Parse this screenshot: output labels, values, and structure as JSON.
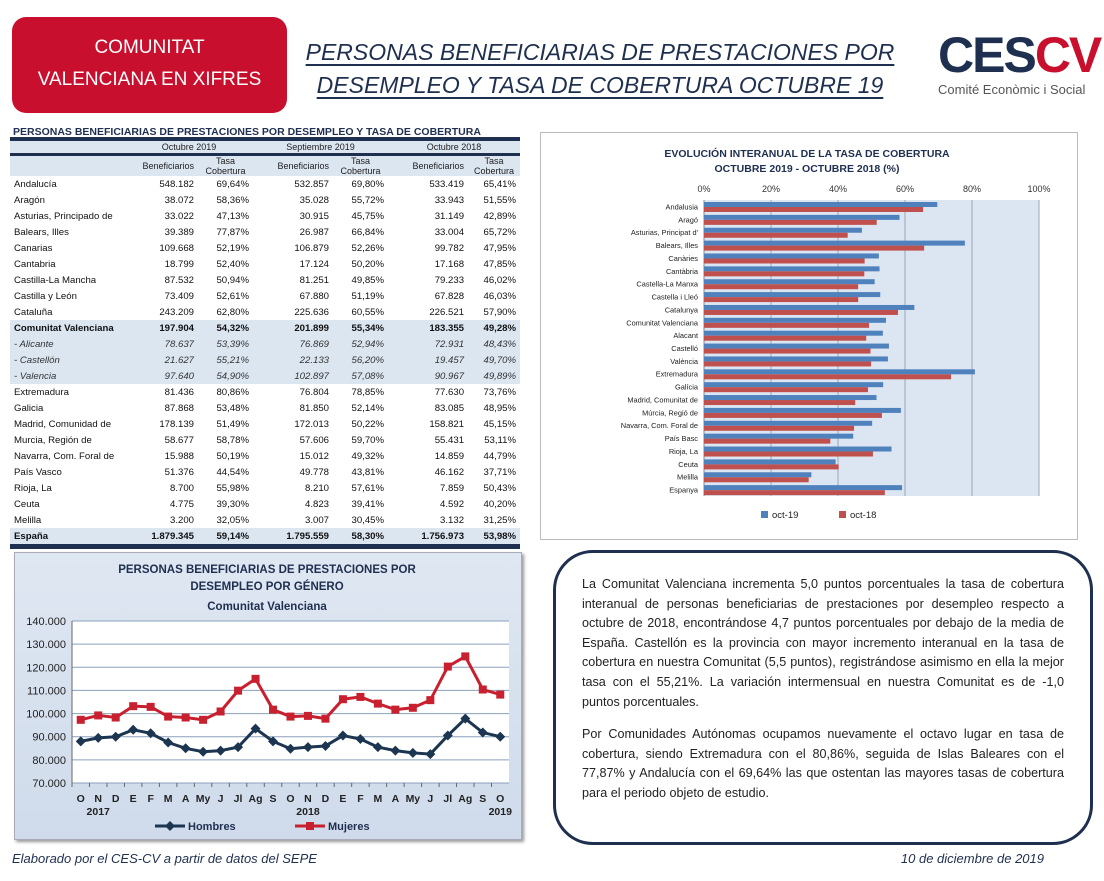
{
  "header": {
    "badge_line1": "COMUNITAT",
    "badge_line2": "VALENCIANA EN XIFRES",
    "title_line1": "PERSONAS BENEFICIARIAS DE PRESTACIONES POR",
    "title_line2": "DESEMPLEO Y TASA DE COBERTURA OCTUBRE 19",
    "logo_ce": "CES",
    "logo_cv": "CV",
    "logo_sub": "Comité Econòmic i Social"
  },
  "table": {
    "title": "PERSONAS BENEFICIARIAS DE PRESTACIONES POR DESEMPLEO Y TASA DE COBERTURA",
    "groups": [
      "Octubre 2019",
      "Septiembre 2019",
      "Octubre 2018"
    ],
    "sub_headers": [
      "Beneficiarios",
      "Tasa Cobertura"
    ],
    "rows": [
      {
        "name": "Andalucía",
        "v": [
          "548.182",
          "69,64%",
          "532.857",
          "69,80%",
          "533.419",
          "65,41%"
        ],
        "style": ""
      },
      {
        "name": "Aragón",
        "v": [
          "38.072",
          "58,36%",
          "35.028",
          "55,72%",
          "33.943",
          "51,55%"
        ],
        "style": ""
      },
      {
        "name": "Asturias, Principado de",
        "v": [
          "33.022",
          "47,13%",
          "30.915",
          "45,75%",
          "31.149",
          "42,89%"
        ],
        "style": ""
      },
      {
        "name": "Balears, Illes",
        "v": [
          "39.389",
          "77,87%",
          "26.987",
          "66,84%",
          "33.004",
          "65,72%"
        ],
        "style": ""
      },
      {
        "name": "Canarias",
        "v": [
          "109.668",
          "52,19%",
          "106.879",
          "52,26%",
          "99.782",
          "47,95%"
        ],
        "style": ""
      },
      {
        "name": "Cantabria",
        "v": [
          "18.799",
          "52,40%",
          "17.124",
          "50,20%",
          "17.168",
          "47,85%"
        ],
        "style": ""
      },
      {
        "name": "Castilla-La Mancha",
        "v": [
          "87.532",
          "50,94%",
          "81.251",
          "49,85%",
          "79.233",
          "46,02%"
        ],
        "style": ""
      },
      {
        "name": "Castilla y León",
        "v": [
          "73.409",
          "52,61%",
          "67.880",
          "51,19%",
          "67.828",
          "46,03%"
        ],
        "style": ""
      },
      {
        "name": "Cataluña",
        "v": [
          "243.209",
          "62,80%",
          "225.636",
          "60,55%",
          "226.521",
          "57,90%"
        ],
        "style": ""
      },
      {
        "name": "Comunitat Valenciana",
        "v": [
          "197.904",
          "54,32%",
          "201.899",
          "55,34%",
          "183.355",
          "49,28%"
        ],
        "style": "hl"
      },
      {
        "name": "-  Alicante",
        "v": [
          "78.637",
          "53,39%",
          "76.869",
          "52,94%",
          "72.931",
          "48,43%"
        ],
        "style": "sub"
      },
      {
        "name": "- Castellón",
        "v": [
          "21.627",
          "55,21%",
          "22.133",
          "56,20%",
          "19.457",
          "49,70%"
        ],
        "style": "sub"
      },
      {
        "name": "- Valencia",
        "v": [
          "97.640",
          "54,90%",
          "102.897",
          "57,08%",
          "90.967",
          "49,89%"
        ],
        "style": "sub"
      },
      {
        "name": "Extremadura",
        "v": [
          "81.436",
          "80,86%",
          "76.804",
          "78,85%",
          "77.630",
          "73,76%"
        ],
        "style": ""
      },
      {
        "name": "Galicia",
        "v": [
          "87.868",
          "53,48%",
          "81.850",
          "52,14%",
          "83.085",
          "48,95%"
        ],
        "style": ""
      },
      {
        "name": "Madrid, Comunidad de",
        "v": [
          "178.139",
          "51,49%",
          "172.013",
          "50,22%",
          "158.821",
          "45,15%"
        ],
        "style": ""
      },
      {
        "name": "Murcia, Región de",
        "v": [
          "58.677",
          "58,78%",
          "57.606",
          "59,70%",
          "55.431",
          "53,11%"
        ],
        "style": ""
      },
      {
        "name": "Navarra, Com. Foral de",
        "v": [
          "15.988",
          "50,19%",
          "15.012",
          "49,32%",
          "14.859",
          "44,79%"
        ],
        "style": ""
      },
      {
        "name": "País Vasco",
        "v": [
          "51.376",
          "44,54%",
          "49.778",
          "43,81%",
          "46.162",
          "37,71%"
        ],
        "style": ""
      },
      {
        "name": "Rioja, La",
        "v": [
          "8.700",
          "55,98%",
          "8.210",
          "57,61%",
          "7.859",
          "50,43%"
        ],
        "style": ""
      },
      {
        "name": "Ceuta",
        "v": [
          "4.775",
          "39,30%",
          "4.823",
          "39,41%",
          "4.592",
          "40,20%"
        ],
        "style": ""
      },
      {
        "name": "Melilla",
        "v": [
          "3.200",
          "32,05%",
          "3.007",
          "30,45%",
          "3.132",
          "31,25%"
        ],
        "style": ""
      },
      {
        "name": "España",
        "v": [
          "1.879.345",
          "59,14%",
          "1.795.559",
          "58,30%",
          "1.756.973",
          "53,98%"
        ],
        "style": "tot"
      }
    ]
  },
  "chart_data": [
    {
      "type": "bar",
      "orientation": "horizontal",
      "title": [
        "EVOLUCIÓN  INTERANUAL DE LA TASA DE COBERTURA",
        "OCTUBRE 2019 - OCTUBRE 2018 (%)"
      ],
      "categories": [
        "Andalusia",
        "Aragó",
        "Asturias, Principat d'",
        "Balears, Illes",
        "Canàries",
        "Cantàbria",
        "Castella-La Manxa",
        "Castella i Lleó",
        "Catalunya",
        "Comunitat Valenciana",
        "Alacant",
        "Castelló",
        "València",
        "Extremadura",
        "Galícia",
        "Madrid, Comunitat de",
        "Múrcia, Regió de",
        "Navarra, Com. Foral de",
        "País Basc",
        "Rioja, La",
        "Ceuta",
        "Melilla",
        "Espanya"
      ],
      "series": [
        {
          "name": "oct-19",
          "color": "#4f81bd",
          "values": [
            69.64,
            58.36,
            47.13,
            77.87,
            52.19,
            52.4,
            50.94,
            52.61,
            62.8,
            54.32,
            53.39,
            55.21,
            54.9,
            80.86,
            53.48,
            51.49,
            58.78,
            50.19,
            44.54,
            55.98,
            39.3,
            32.05,
            59.14
          ]
        },
        {
          "name": "oct-18",
          "color": "#c0504d",
          "values": [
            65.41,
            51.55,
            42.89,
            65.72,
            47.95,
            47.85,
            46.02,
            46.03,
            57.9,
            49.28,
            48.43,
            49.7,
            49.89,
            73.76,
            48.95,
            45.15,
            53.11,
            44.79,
            37.71,
            50.43,
            40.2,
            31.25,
            53.98
          ]
        }
      ],
      "xlim": [
        0,
        100
      ],
      "xticks": [
        "0%",
        "20%",
        "40%",
        "60%",
        "80%",
        "100%"
      ],
      "grid": true,
      "legend": "bottom"
    },
    {
      "type": "line",
      "title": [
        "PERSONAS  BENEFICIARIAS  DE PRESTACIONES  POR",
        "DESEMPLEO  POR  GÉNERO",
        "Comunitat Valenciana"
      ],
      "categories": [
        "O",
        "N",
        "D",
        "E",
        "F",
        "M",
        "A",
        "My",
        "J",
        "Jl",
        "Ag",
        "S",
        "O",
        "N",
        "D",
        "E",
        "F",
        "M",
        "A",
        "My",
        "J",
        "Jl",
        "Ag",
        "S",
        "O"
      ],
      "year_labels": [
        {
          "text": "2017",
          "index": 1
        },
        {
          "text": "2018",
          "index": 13
        },
        {
          "text": "2019",
          "index": 24
        }
      ],
      "series": [
        {
          "name": "Hombres",
          "color": "#1c3550",
          "marker": "diamond",
          "values": [
            88000,
            89500,
            90000,
            93000,
            91500,
            87500,
            85000,
            83500,
            84000,
            85500,
            93500,
            88000,
            84800,
            85500,
            86000,
            90500,
            89000,
            85500,
            84000,
            83000,
            82500,
            90500,
            97800,
            91800,
            90000
          ]
        },
        {
          "name": "Mujeres",
          "color": "#c8202e",
          "marker": "square",
          "values": [
            97300,
            99200,
            98300,
            103200,
            102900,
            98700,
            98300,
            97300,
            100900,
            109900,
            115000,
            101700,
            98700,
            99000,
            97800,
            106200,
            107200,
            104300,
            101700,
            102500,
            105800,
            120300,
            124700,
            110400,
            108200
          ]
        }
      ],
      "ylim": [
        70000,
        140000
      ],
      "yticks": [
        "70.000",
        "80.000",
        "90.000",
        "100.000",
        "110.000",
        "120.000",
        "130.000",
        "140.000"
      ],
      "grid": true,
      "legend": "bottom"
    }
  ],
  "text": {
    "p1": "La Comunitat Valenciana incrementa 5,0 puntos porcentuales la tasa de cobertura interanual de personas beneficiarias de prestaciones por desempleo respecto a octubre de 2018, encontrándose 4,7 puntos porcentuales por debajo de la media de España. Castellón es la provincia con mayor incremento interanual en la tasa de cobertura en nuestra Comunitat (5,5 puntos), registrándose asimismo en ella la mejor tasa con el 55,21%. La variación intermensual en nuestra Comunitat es de -1,0 puntos porcentuales.",
    "p2": "Por Comunidades Autónomas ocupamos nuevamente el octavo lugar en tasa de cobertura, siendo Extremadura con el 80,86%, seguida de Islas Baleares con el 77,87% y Andalucía con el 69,64% las que ostentan las mayores tasas de cobertura para el periodo objeto de estudio."
  },
  "footer": {
    "source": "Elaborado por el CES-CV a partir de datos del SEPE",
    "date": "10 de diciembre de 2019"
  }
}
